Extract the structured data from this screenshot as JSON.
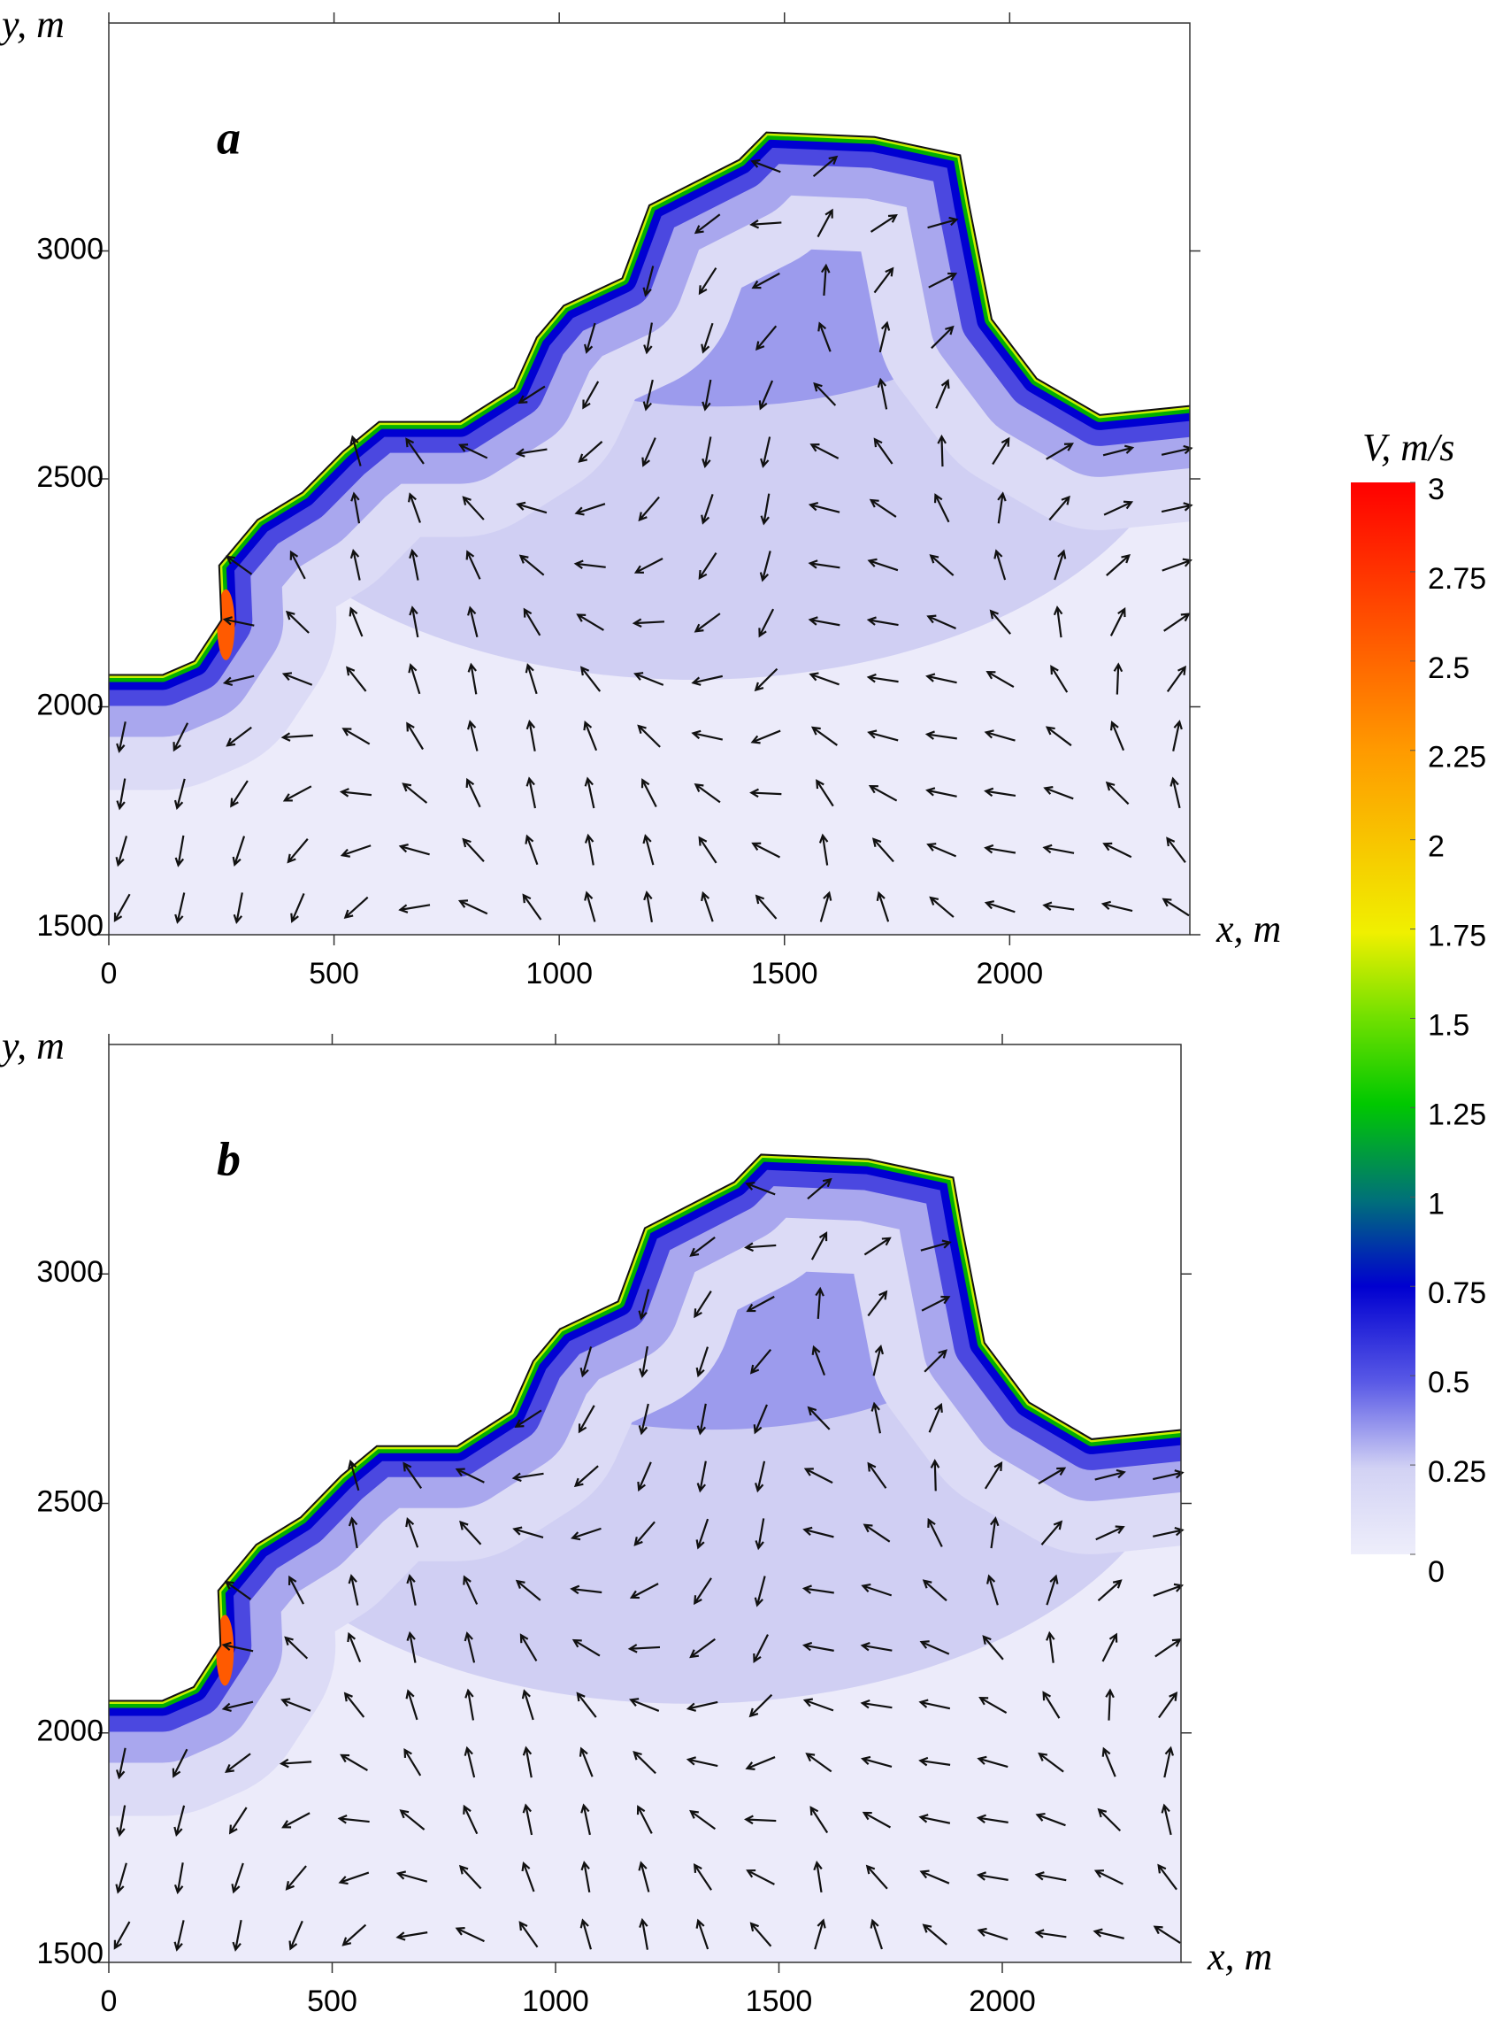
{
  "chart_data": [
    {
      "type": "vector-field",
      "panel_label": "a",
      "xlabel": "x, m",
      "ylabel": "y, m",
      "xlim": [
        0,
        2400
      ],
      "ylim": [
        1500,
        3500
      ],
      "xticks": [
        0,
        500,
        1000,
        1500,
        2000
      ],
      "yticks": [
        1500,
        2000,
        2500,
        3000
      ]
    },
    {
      "type": "vector-field",
      "panel_label": "b",
      "xlabel": "x, m",
      "ylabel": "y, m",
      "xlim": [
        0,
        2400
      ],
      "ylim": [
        1500,
        3500
      ],
      "xticks": [
        0,
        500,
        1000,
        1500,
        2000
      ],
      "yticks": [
        1500,
        2000,
        2500,
        3000
      ]
    }
  ],
  "colorbar": {
    "label": "V, m/s",
    "lim": [
      0,
      3
    ],
    "ticks": [
      0,
      0.25,
      0.5,
      0.75,
      1,
      1.25,
      1.5,
      1.75,
      2,
      2.25,
      2.5,
      2.75,
      3
    ]
  }
}
